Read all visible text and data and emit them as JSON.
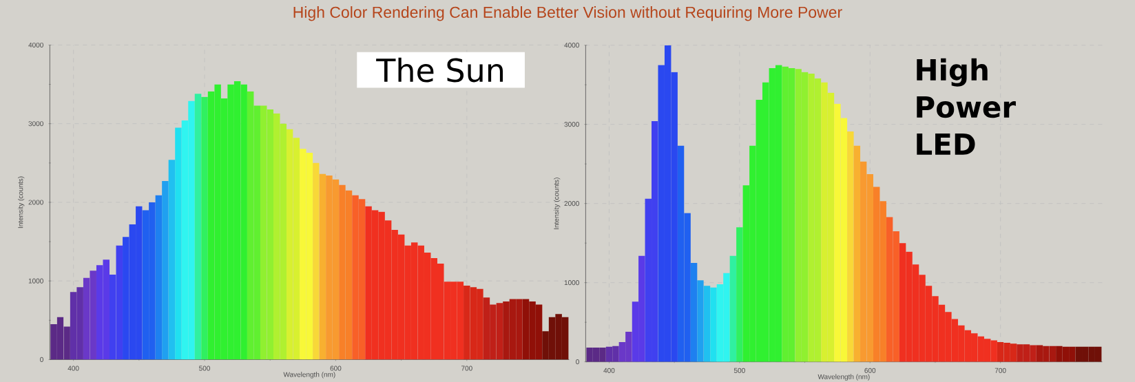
{
  "chart_data": [
    {
      "type": "bar",
      "title": "The Sun",
      "annotations": [
        "High Color Rendering Can Enable Better Vision without Requiring More Power"
      ],
      "xlabel": "Wavelength (nm)",
      "ylabel": "Intensity (counts)",
      "x": [
        385,
        390,
        395,
        400,
        405,
        410,
        415,
        420,
        425,
        430,
        435,
        440,
        445,
        450,
        455,
        460,
        465,
        470,
        475,
        480,
        485,
        490,
        495,
        500,
        505,
        510,
        515,
        520,
        525,
        530,
        535,
        540,
        545,
        550,
        555,
        560,
        565,
        570,
        575,
        580,
        585,
        590,
        595,
        600,
        605,
        610,
        615,
        620,
        625,
        630,
        635,
        640,
        645,
        650,
        655,
        660,
        665,
        670,
        675,
        680,
        685,
        690,
        695,
        700,
        705,
        710,
        715,
        720,
        725,
        730,
        735,
        740,
        745,
        750,
        755,
        760,
        765,
        770,
        775
      ],
      "values": [
        450,
        540,
        420,
        860,
        920,
        1040,
        1130,
        1200,
        1270,
        1080,
        1450,
        1560,
        1720,
        1950,
        1900,
        2000,
        2090,
        2270,
        2540,
        2950,
        3040,
        3290,
        3380,
        3340,
        3410,
        3500,
        3320,
        3500,
        3540,
        3500,
        3410,
        3230,
        3230,
        3180,
        3130,
        3000,
        2930,
        2820,
        2680,
        2630,
        2500,
        2360,
        2340,
        2290,
        2220,
        2150,
        2090,
        2040,
        1950,
        1900,
        1880,
        1770,
        1650,
        1590,
        1450,
        1490,
        1450,
        1360,
        1290,
        1220,
        990,
        990,
        990,
        940,
        920,
        900,
        790,
        700,
        720,
        740,
        770,
        770,
        770,
        740,
        700,
        360,
        540,
        580,
        540
      ],
      "colors": [
        "#5b2a86",
        "#5b2a86",
        "#5b2a86",
        "#6030a8",
        "#6030a8",
        "#6a38c8",
        "#6a38c8",
        "#5a3ae8",
        "#5a3ae8",
        "#4040f0",
        "#4040f0",
        "#2a48f0",
        "#2a48f0",
        "#2a48f0",
        "#2060f0",
        "#2060f0",
        "#1e80f0",
        "#20a0f0",
        "#20c0f0",
        "#20e0f0",
        "#30f4f0",
        "#30f4f0",
        "#30f0a0",
        "#30f060",
        "#30f030",
        "#30f030",
        "#30f030",
        "#30f030",
        "#30f030",
        "#30f030",
        "#60f030",
        "#60f030",
        "#90f030",
        "#90f030",
        "#b0f030",
        "#b0f030",
        "#d8f030",
        "#d8f030",
        "#f8f838",
        "#f8f838",
        "#f8d838",
        "#f8b030",
        "#f89a30",
        "#f89a30",
        "#f88028",
        "#f88028",
        "#f86028",
        "#f86028",
        "#f03020",
        "#f03020",
        "#f03020",
        "#f03020",
        "#f03020",
        "#f03020",
        "#f03020",
        "#f03020",
        "#f03020",
        "#f03020",
        "#f03020",
        "#f03020",
        "#f03020",
        "#f03020",
        "#f03020",
        "#d82818",
        "#d82818",
        "#d82818",
        "#c02018",
        "#c02018",
        "#c02018",
        "#a81810",
        "#a81810",
        "#a81810",
        "#901008",
        "#901008",
        "#901008",
        "#701008",
        "#701008",
        "#701008",
        "#701008"
      ],
      "xlim": [
        382,
        778
      ],
      "ylim": [
        0,
        4000
      ],
      "xticks": [
        400,
        500,
        600,
        700
      ],
      "yticks": [
        0,
        1000,
        2000,
        3000,
        4000
      ],
      "grid": true
    },
    {
      "type": "bar",
      "title": "High Power LED",
      "xlabel": "Wavelength (nm)",
      "ylabel": "Intensity (counts)",
      "x": [
        385,
        390,
        395,
        400,
        405,
        410,
        415,
        420,
        425,
        430,
        435,
        440,
        445,
        450,
        455,
        460,
        465,
        470,
        475,
        480,
        485,
        490,
        495,
        500,
        505,
        510,
        515,
        520,
        525,
        530,
        535,
        540,
        545,
        550,
        555,
        560,
        565,
        570,
        575,
        580,
        585,
        590,
        595,
        600,
        605,
        610,
        615,
        620,
        625,
        630,
        635,
        640,
        645,
        650,
        655,
        660,
        665,
        670,
        675,
        680,
        685,
        690,
        695,
        700,
        705,
        710,
        715,
        720,
        725,
        730,
        735,
        740,
        745,
        750,
        755,
        760,
        765,
        770,
        775
      ],
      "values": [
        180,
        180,
        180,
        190,
        200,
        250,
        380,
        760,
        1340,
        2060,
        3040,
        3750,
        4000,
        3660,
        2730,
        1880,
        1250,
        1030,
        960,
        940,
        980,
        1120,
        1340,
        1700,
        2230,
        2730,
        3310,
        3530,
        3710,
        3750,
        3730,
        3710,
        3700,
        3660,
        3640,
        3580,
        3530,
        3400,
        3260,
        3080,
        2910,
        2730,
        2530,
        2370,
        2210,
        2030,
        1830,
        1650,
        1500,
        1390,
        1230,
        1100,
        960,
        830,
        720,
        630,
        540,
        460,
        400,
        360,
        320,
        290,
        270,
        250,
        240,
        230,
        220,
        220,
        210,
        210,
        200,
        200,
        200,
        190,
        190,
        190,
        190,
        190,
        190
      ],
      "colors": [
        "#5b2a86",
        "#5b2a86",
        "#5b2a86",
        "#6030a8",
        "#6030a8",
        "#6a38c8",
        "#6a38c8",
        "#5a3ae8",
        "#5a3ae8",
        "#4040f0",
        "#4040f0",
        "#2a48f0",
        "#2a48f0",
        "#2a48f0",
        "#2060f0",
        "#2060f0",
        "#1e80f0",
        "#20a0f0",
        "#20c0f0",
        "#20e0f0",
        "#30f4f0",
        "#30f4f0",
        "#30f0a0",
        "#30f060",
        "#30f030",
        "#30f030",
        "#30f030",
        "#30f030",
        "#30f030",
        "#30f030",
        "#60f030",
        "#60f030",
        "#90f030",
        "#90f030",
        "#b0f030",
        "#b0f030",
        "#d8f030",
        "#d8f030",
        "#f8f838",
        "#f8f838",
        "#f8d838",
        "#f8b030",
        "#f89a30",
        "#f89a30",
        "#f88028",
        "#f88028",
        "#f86028",
        "#f86028",
        "#f03020",
        "#f03020",
        "#f03020",
        "#f03020",
        "#f03020",
        "#f03020",
        "#f03020",
        "#f03020",
        "#f03020",
        "#f03020",
        "#f03020",
        "#f03020",
        "#f03020",
        "#f03020",
        "#f03020",
        "#d82818",
        "#d82818",
        "#d82818",
        "#c02018",
        "#c02018",
        "#c02018",
        "#a81810",
        "#a81810",
        "#a81810",
        "#901008",
        "#901008",
        "#901008",
        "#701008",
        "#701008",
        "#701008",
        "#701008"
      ],
      "xlim": [
        382,
        778
      ],
      "ylim": [
        0,
        4000
      ],
      "xticks": [
        400,
        500,
        600,
        700
      ],
      "yticks": [
        0,
        1000,
        2000,
        3000,
        4000
      ],
      "grid": true
    }
  ]
}
